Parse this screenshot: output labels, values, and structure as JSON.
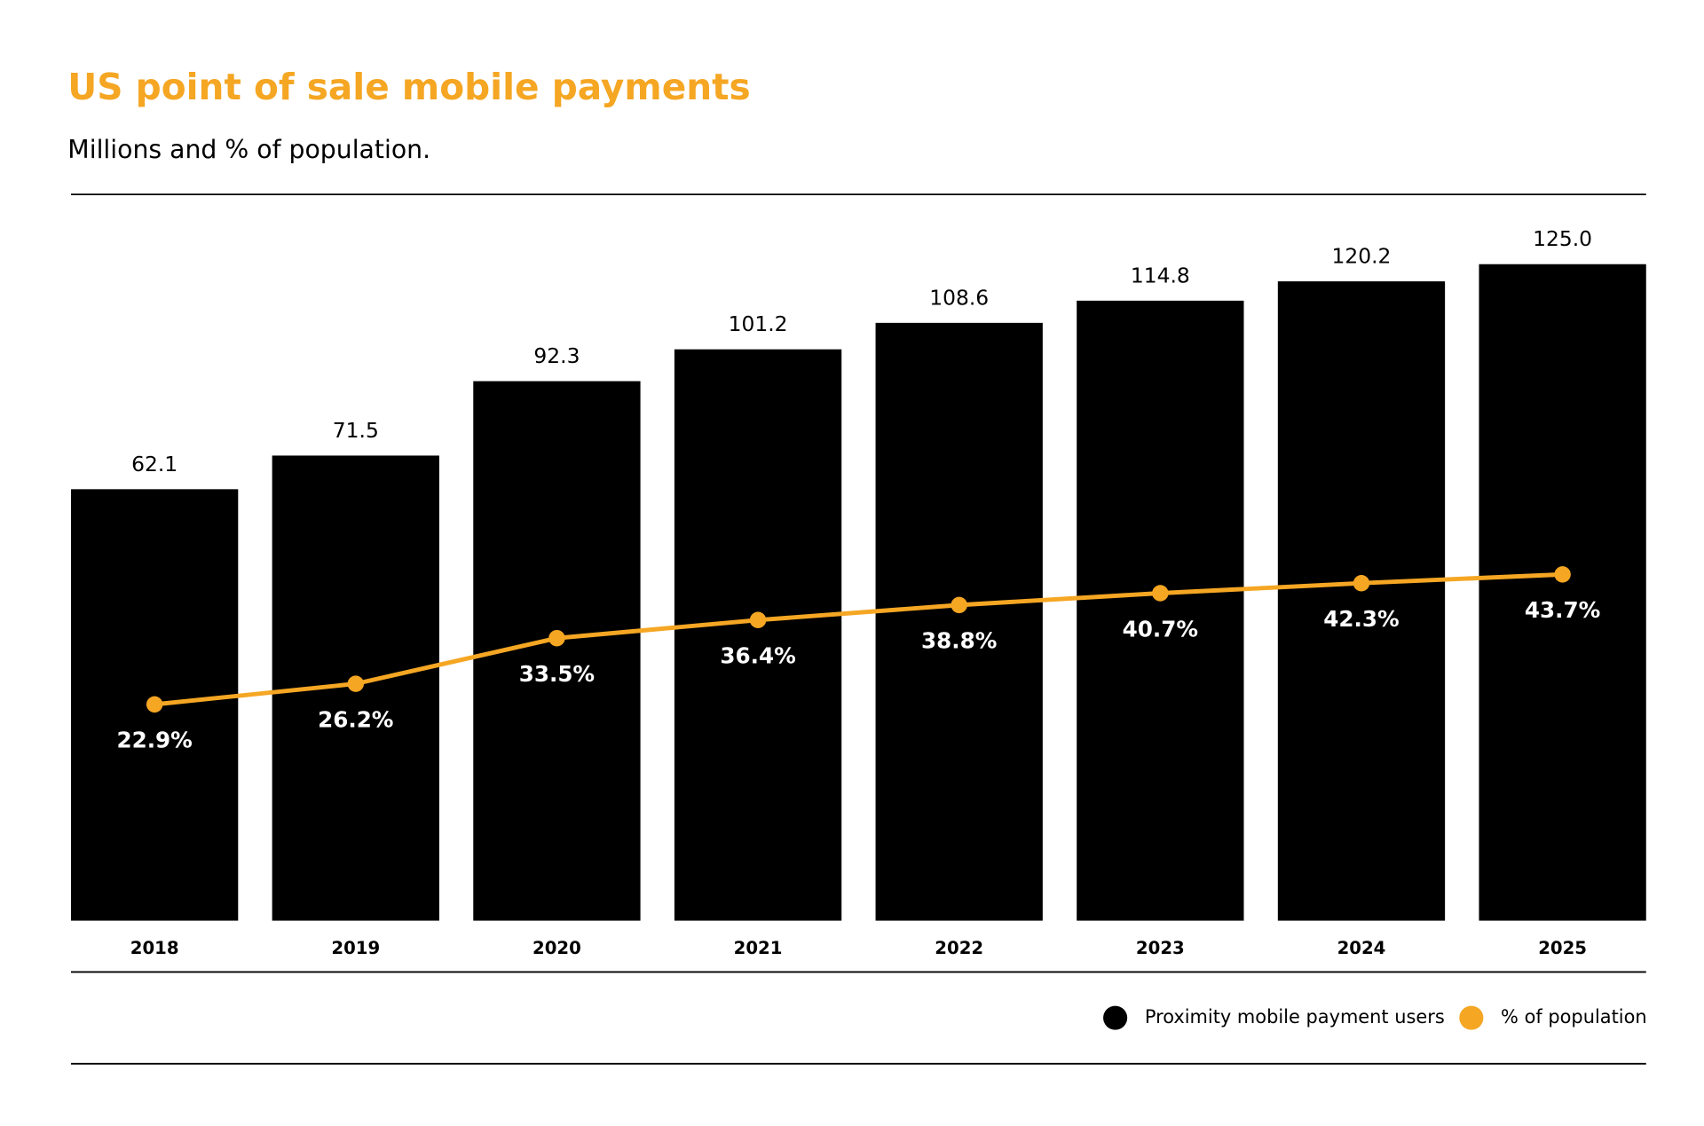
{
  "chart_data": {
    "type": "bar",
    "title": "US point of sale mobile payments",
    "subtitle": "Millions and % of population.",
    "categories": [
      "2018",
      "2019",
      "2020",
      "2021",
      "2022",
      "2023",
      "2024",
      "2025"
    ],
    "series": [
      {
        "name": "Proximity mobile payment users",
        "type": "bar",
        "color": "#000000",
        "values": [
          62.1,
          71.5,
          92.3,
          101.2,
          108.6,
          114.8,
          120.2,
          125.0
        ],
        "value_labels": [
          "62.1",
          "71.5",
          "92.3",
          "101.2",
          "108.6",
          "114.8",
          "120.2",
          "125.0"
        ]
      },
      {
        "name": "% of population",
        "type": "line",
        "axis": "y2",
        "color": "#f5a623",
        "values": [
          22.9,
          26.2,
          33.5,
          36.4,
          38.8,
          40.7,
          42.3,
          43.7
        ],
        "value_labels": [
          "22.9%",
          "26.2%",
          "33.5%",
          "36.4%",
          "38.8%",
          "40.7%",
          "42.3%",
          "43.7%"
        ]
      }
    ],
    "ylim": [
      -58.5,
      144.5
    ],
    "y2lim": [
      -11.7,
      104.5
    ],
    "title_color": "#f5a623",
    "legend": "bottom-right"
  }
}
